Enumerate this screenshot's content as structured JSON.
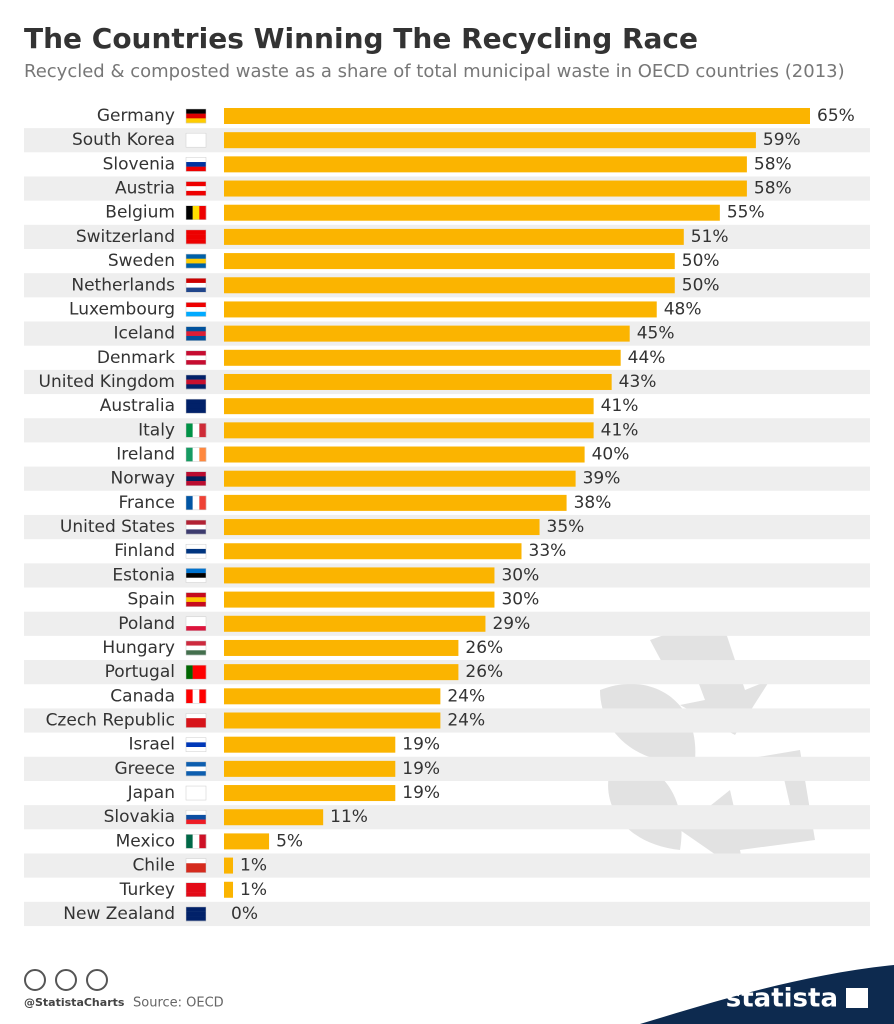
{
  "chart_data": {
    "type": "bar",
    "title": "The Countries Winning The Recycling Race",
    "subtitle": "Recycled & composted waste as a share of total municipal waste in OECD countries (2013)",
    "categories": [
      "Germany",
      "South Korea",
      "Slovenia",
      "Austria",
      "Belgium",
      "Switzerland",
      "Sweden",
      "Netherlands",
      "Luxembourg",
      "Iceland",
      "Denmark",
      "United Kingdom",
      "Australia",
      "Italy",
      "Ireland",
      "Norway",
      "France",
      "United States",
      "Finland",
      "Estonia",
      "Spain",
      "Poland",
      "Hungary",
      "Portugal",
      "Canada",
      "Czech Republic",
      "Israel",
      "Greece",
      "Japan",
      "Slovakia",
      "Mexico",
      "Chile",
      "Turkey",
      "New Zealand"
    ],
    "values": [
      65,
      59,
      58,
      58,
      55,
      51,
      50,
      50,
      48,
      45,
      44,
      43,
      41,
      41,
      40,
      39,
      38,
      35,
      33,
      30,
      30,
      29,
      26,
      26,
      24,
      24,
      19,
      19,
      19,
      11,
      5,
      1,
      1,
      0
    ],
    "value_labels": [
      "65%",
      "59%",
      "58%",
      "58%",
      "55%",
      "51%",
      "50%",
      "50%",
      "48%",
      "45%",
      "44%",
      "43%",
      "41%",
      "41%",
      "40%",
      "39%",
      "38%",
      "35%",
      "33%",
      "30%",
      "30%",
      "29%",
      "26%",
      "26%",
      "24%",
      "24%",
      "19%",
      "19%",
      "19%",
      "11%",
      "5%",
      "1%",
      "1%",
      "0%"
    ],
    "color": "#fbb400",
    "handle": "@StatistaCharts",
    "source": "Source: OECD",
    "brand": "statista"
  }
}
